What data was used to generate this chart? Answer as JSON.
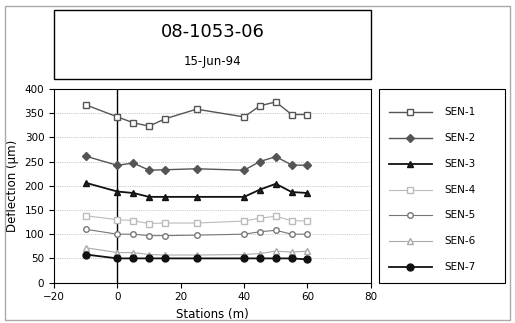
{
  "title": "08-1053-06",
  "subtitle": "15-Jun-94",
  "xlabel": "Stations (m)",
  "ylabel": "Deflection (μm)",
  "xlim": [
    -20,
    80
  ],
  "ylim": [
    0,
    400
  ],
  "xticks": [
    -20,
    0,
    20,
    40,
    60,
    80
  ],
  "yticks": [
    0,
    50,
    100,
    150,
    200,
    250,
    300,
    350,
    400
  ],
  "vline_x": 0,
  "sensors": {
    "SEN-1": {
      "x": [
        -10,
        0,
        5,
        10,
        15,
        25,
        40,
        45,
        50,
        55,
        60
      ],
      "y": [
        367,
        342,
        330,
        323,
        338,
        358,
        342,
        365,
        373,
        347,
        347
      ],
      "color": "#555555",
      "marker": "s",
      "markersize": 4,
      "markerfacecolor": "white",
      "linewidth": 1.0
    },
    "SEN-2": {
      "x": [
        -10,
        0,
        5,
        10,
        15,
        25,
        40,
        45,
        50,
        55,
        60
      ],
      "y": [
        261,
        242,
        247,
        232,
        233,
        235,
        232,
        250,
        260,
        243,
        242
      ],
      "color": "#555555",
      "marker": "D",
      "markersize": 4,
      "markerfacecolor": "#555555",
      "linewidth": 1.0
    },
    "SEN-3": {
      "x": [
        -10,
        0,
        5,
        10,
        15,
        25,
        40,
        45,
        50,
        55,
        60
      ],
      "y": [
        206,
        188,
        185,
        177,
        177,
        177,
        177,
        192,
        204,
        187,
        185
      ],
      "color": "#111111",
      "marker": "^",
      "markersize": 5,
      "markerfacecolor": "#222222",
      "linewidth": 1.3
    },
    "SEN-4": {
      "x": [
        -10,
        0,
        5,
        10,
        15,
        25,
        40,
        45,
        50,
        55,
        60
      ],
      "y": [
        138,
        130,
        128,
        122,
        123,
        123,
        127,
        133,
        137,
        128,
        127
      ],
      "color": "#bbbbbb",
      "marker": "s",
      "markersize": 4,
      "markerfacecolor": "white",
      "linewidth": 0.8
    },
    "SEN-5": {
      "x": [
        -10,
        0,
        5,
        10,
        15,
        25,
        40,
        45,
        50,
        55,
        60
      ],
      "y": [
        110,
        100,
        100,
        97,
        97,
        98,
        100,
        105,
        108,
        100,
        100
      ],
      "color": "#777777",
      "marker": "o",
      "markersize": 4,
      "markerfacecolor": "white",
      "linewidth": 0.8
    },
    "SEN-6": {
      "x": [
        -10,
        0,
        5,
        10,
        15,
        25,
        40,
        45,
        50,
        55,
        60
      ],
      "y": [
        72,
        62,
        62,
        58,
        57,
        57,
        58,
        60,
        65,
        63,
        65
      ],
      "color": "#aaaaaa",
      "marker": "^",
      "markersize": 4,
      "markerfacecolor": "white",
      "linewidth": 0.8
    },
    "SEN-7": {
      "x": [
        -10,
        0,
        5,
        10,
        15,
        25,
        40,
        45,
        50,
        55,
        60
      ],
      "y": [
        58,
        50,
        50,
        50,
        50,
        50,
        50,
        50,
        50,
        50,
        48
      ],
      "color": "#111111",
      "marker": "o",
      "markersize": 5,
      "markerfacecolor": "#111111",
      "linewidth": 1.3
    }
  },
  "grid_yticks": [
    50,
    100,
    150,
    200,
    250,
    300,
    350
  ],
  "background_color": "#ffffff",
  "outer_box_color": "#999999"
}
